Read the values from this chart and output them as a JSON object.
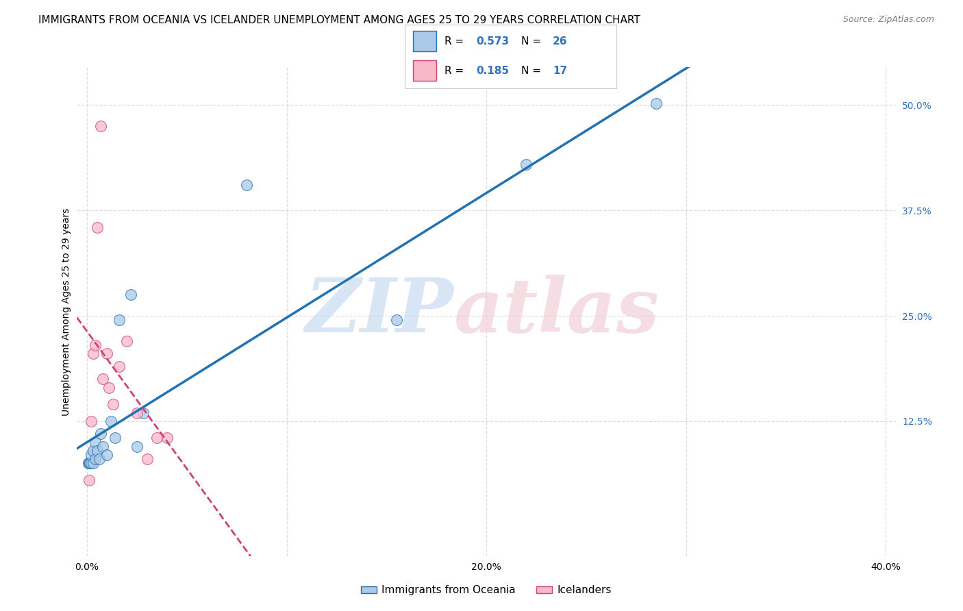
{
  "title": "IMMIGRANTS FROM OCEANIA VS ICELANDER UNEMPLOYMENT AMONG AGES 25 TO 29 YEARS CORRELATION CHART",
  "source": "Source: ZipAtlas.com",
  "ylabel": "Unemployment Among Ages 25 to 29 years",
  "xlim": [
    -0.005,
    0.405
  ],
  "ylim": [
    -0.035,
    0.545
  ],
  "yticks_right": [
    0.125,
    0.25,
    0.375,
    0.5
  ],
  "ytick_labels_right": [
    "12.5%",
    "25.0%",
    "37.5%",
    "50.0%"
  ],
  "xticks": [
    0.0,
    0.1,
    0.2,
    0.3,
    0.4
  ],
  "xtick_labels": [
    "0.0%",
    "",
    "20.0%",
    "",
    "40.0%"
  ],
  "blue_scatter_x": [
    0.0005,
    0.001,
    0.0015,
    0.002,
    0.002,
    0.003,
    0.003,
    0.004,
    0.004,
    0.005,
    0.006,
    0.007,
    0.008,
    0.01,
    0.012,
    0.014,
    0.016,
    0.022,
    0.025,
    0.028,
    0.08,
    0.155,
    0.22,
    0.285
  ],
  "blue_scatter_y": [
    0.075,
    0.075,
    0.075,
    0.075,
    0.085,
    0.075,
    0.09,
    0.08,
    0.1,
    0.09,
    0.08,
    0.11,
    0.095,
    0.085,
    0.125,
    0.105,
    0.245,
    0.275,
    0.095,
    0.135,
    0.405,
    0.245,
    0.43,
    0.502
  ],
  "pink_scatter_x": [
    0.001,
    0.002,
    0.003,
    0.004,
    0.005,
    0.007,
    0.008,
    0.01,
    0.011,
    0.013,
    0.016,
    0.02,
    0.025,
    0.03,
    0.035,
    0.04
  ],
  "pink_scatter_y": [
    0.055,
    0.125,
    0.205,
    0.215,
    0.355,
    0.475,
    0.175,
    0.205,
    0.165,
    0.145,
    0.19,
    0.22,
    0.135,
    0.08,
    0.105,
    0.105
  ],
  "blue_R": 0.573,
  "blue_N": 26,
  "pink_R": 0.185,
  "pink_N": 17,
  "blue_scatter_color": "#aac8e8",
  "blue_line_color": "#2171b5",
  "pink_scatter_color": "#f8b8c8",
  "pink_line_color": "#d04070",
  "text_blue": "#3070c0",
  "watermark_color_zip": "#c8daf0",
  "watermark_color_atlas": "#f0d0d8",
  "background_color": "#ffffff",
  "grid_color": "#dddddd",
  "title_fontsize": 11,
  "source_fontsize": 9,
  "axis_label_fontsize": 10,
  "tick_fontsize": 10,
  "marker_size": 130
}
